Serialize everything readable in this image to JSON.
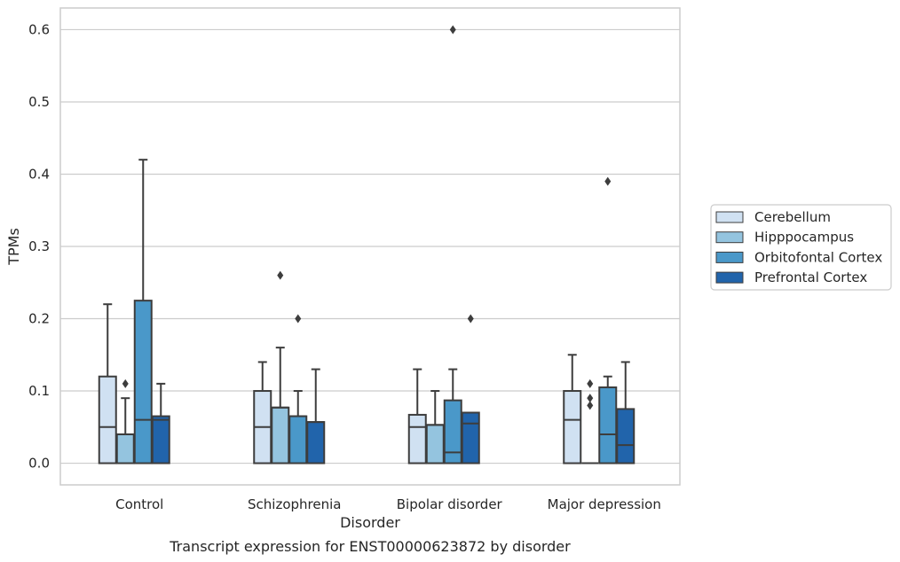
{
  "chart_data": {
    "type": "box",
    "title": "Transcript expression for ENST00000623872 by disorder",
    "xlabel": "Disorder",
    "ylabel": "TPMs",
    "ylim": [
      -0.03,
      0.63
    ],
    "yticks": [
      0.0,
      0.1,
      0.2,
      0.3,
      0.4,
      0.5,
      0.6
    ],
    "ytick_labels": [
      "0.0",
      "0.1",
      "0.2",
      "0.3",
      "0.4",
      "0.5",
      "0.6"
    ],
    "grid": "horizontal",
    "legend_position": "right",
    "categories": [
      "Control",
      "Schizophrenia",
      "Bipolar disorder",
      "Major depression"
    ],
    "series": [
      {
        "name": "Cerebellum",
        "color": "#d0e1f2",
        "boxes": [
          {
            "whislo": 0.0,
            "q1": 0.0,
            "med": 0.05,
            "q3": 0.12,
            "whishi": 0.22,
            "fliers": []
          },
          {
            "whislo": 0.0,
            "q1": 0.0,
            "med": 0.05,
            "q3": 0.1,
            "whishi": 0.14,
            "fliers": []
          },
          {
            "whislo": 0.0,
            "q1": 0.0,
            "med": 0.05,
            "q3": 0.067,
            "whishi": 0.13,
            "fliers": []
          },
          {
            "whislo": 0.0,
            "q1": 0.0,
            "med": 0.06,
            "q3": 0.1,
            "whishi": 0.15,
            "fliers": []
          }
        ]
      },
      {
        "name": "Hipppocampus",
        "color": "#94c4df",
        "boxes": [
          {
            "whislo": 0.0,
            "q1": 0.0,
            "med": 0.04,
            "q3": 0.04,
            "whishi": 0.09,
            "fliers": [
              0.11
            ]
          },
          {
            "whislo": 0.0,
            "q1": 0.0,
            "med": 0.077,
            "q3": 0.077,
            "whishi": 0.16,
            "fliers": [
              0.26
            ]
          },
          {
            "whislo": 0.0,
            "q1": 0.0,
            "med": 0.053,
            "q3": 0.053,
            "whishi": 0.1,
            "fliers": []
          },
          {
            "whislo": 0.0,
            "q1": 0.0,
            "med": 0.0,
            "q3": 0.0,
            "whishi": 0.0,
            "fliers": [
              0.08,
              0.09,
              0.11
            ]
          }
        ]
      },
      {
        "name": "Orbitofontal Cortex",
        "color": "#4a98c9",
        "boxes": [
          {
            "whislo": 0.0,
            "q1": 0.0,
            "med": 0.06,
            "q3": 0.225,
            "whishi": 0.42,
            "fliers": []
          },
          {
            "whislo": 0.0,
            "q1": 0.0,
            "med": 0.065,
            "q3": 0.065,
            "whishi": 0.1,
            "fliers": [
              0.2
            ]
          },
          {
            "whislo": 0.0,
            "q1": 0.0,
            "med": 0.015,
            "q3": 0.087,
            "whishi": 0.13,
            "fliers": [
              0.6
            ]
          },
          {
            "whislo": 0.0,
            "q1": 0.0,
            "med": 0.04,
            "q3": 0.105,
            "whishi": 0.12,
            "fliers": [
              0.39
            ]
          }
        ]
      },
      {
        "name": "Prefrontal Cortex",
        "color": "#2164ab",
        "boxes": [
          {
            "whislo": 0.0,
            "q1": 0.0,
            "med": 0.06,
            "q3": 0.065,
            "whishi": 0.11,
            "fliers": []
          },
          {
            "whislo": 0.0,
            "q1": 0.0,
            "med": 0.057,
            "q3": 0.057,
            "whishi": 0.13,
            "fliers": []
          },
          {
            "whislo": 0.0,
            "q1": 0.0,
            "med": 0.055,
            "q3": 0.07,
            "whishi": 0.07,
            "fliers": [
              0.2
            ]
          },
          {
            "whislo": 0.0,
            "q1": 0.0,
            "med": 0.025,
            "q3": 0.075,
            "whishi": 0.14,
            "fliers": []
          }
        ]
      }
    ]
  }
}
